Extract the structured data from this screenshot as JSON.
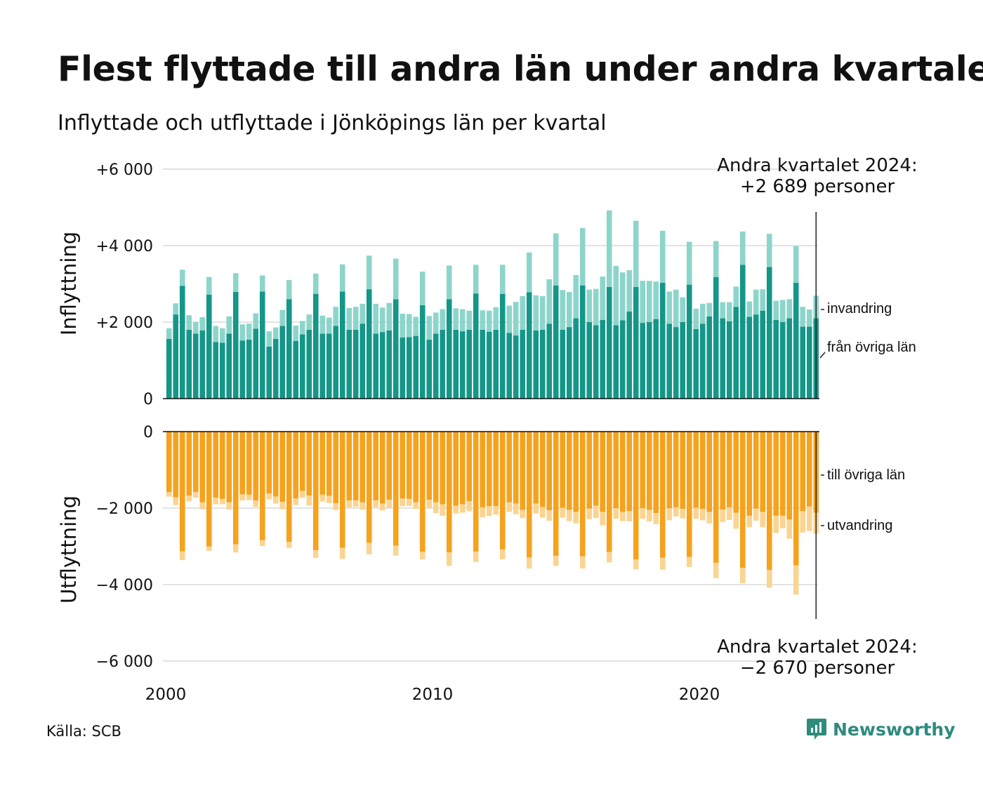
{
  "title": "Flest flyttade till andra län under andra kvartalet",
  "subtitle": "Inflyttade och utflyttade i Jönköpings län per kvartal",
  "source": "Källa: SCB",
  "brand": "Newsworthy",
  "colors": {
    "domestic_in": "#149688",
    "immigration": "#8dd5cb",
    "domestic_out": "#f5a21d",
    "emigration": "#fad492",
    "grid": "#e3e3e3",
    "text": "#111111",
    "brand": "#2e8b7e"
  },
  "chart_data": {
    "type": "bar",
    "stacked": true,
    "start_period": "2000 Q1",
    "end_period": "2024 Q2",
    "x_ticks": [
      "2000",
      "2010",
      "2020"
    ],
    "panels": [
      {
        "id": "inflyttning",
        "ylabel": "Inflyttning",
        "ylim": [
          0,
          6000
        ],
        "yticks": [
          "0",
          "+2 000",
          "+4 000",
          "+6 000"
        ],
        "series": [
          {
            "name": "från övriga län",
            "values": [
              1560,
              2200,
              2950,
              1800,
              1700,
              1780,
              2720,
              1480,
              1460,
              1700,
              2790,
              1520,
              1540,
              1830,
              2800,
              1360,
              1560,
              1900,
              2600,
              1510,
              1680,
              1800,
              2740,
              1700,
              1700,
              1900,
              2800,
              1800,
              1800,
              1960,
              2860,
              1700,
              1740,
              1780,
              2600,
              1600,
              1610,
              1640,
              2440,
              1540,
              1700,
              1800,
              2600,
              1800,
              1760,
              1800,
              2750,
              1800,
              1750,
              1800,
              2740,
              1720,
              1650,
              1800,
              2780,
              1780,
              1800,
              1960,
              2960,
              1800,
              1870,
              2100,
              2960,
              2000,
              1920,
              2060,
              2920,
              1920,
              2050,
              2280,
              2920,
              1980,
              2000,
              2080,
              3030,
              1960,
              1870,
              2000,
              2980,
              1820,
              1960,
              2150,
              3180,
              2100,
              2020,
              2400,
              3500,
              2140,
              2200,
              2300,
              3440,
              2060,
              2000,
              2100,
              3030,
              1880,
              1880,
              2100
            ]
          },
          {
            "name": "invandring",
            "values": [
              280,
              290,
              420,
              380,
              300,
              350,
              460,
              420,
              380,
              450,
              490,
              420,
              420,
              400,
              420,
              400,
              300,
              420,
              500,
              400,
              350,
              400,
              530,
              470,
              420,
              500,
              710,
              570,
              600,
              520,
              880,
              780,
              640,
              720,
              1060,
              620,
              600,
              500,
              880,
              620,
              550,
              540,
              880,
              560,
              580,
              500,
              750,
              510,
              550,
              590,
              760,
              710,
              880,
              880,
              1040,
              920,
              880,
              1160,
              1360,
              1040,
              920,
              1130,
              1500,
              850,
              950,
              1130,
              2000,
              1550,
              1250,
              1080,
              1730,
              1100,
              1080,
              980,
              1360,
              840,
              980,
              650,
              1120,
              530,
              520,
              350,
              940,
              420,
              500,
              530,
              870,
              400,
              650,
              560,
              870,
              500,
              580,
              500,
              960,
              520,
              450,
              590
            ]
          }
        ],
        "annotation": {
          "title": "Andra kvartalet 2024:",
          "value": "+2 689 personer"
        }
      },
      {
        "id": "utflyttning",
        "ylabel": "Utflyttning",
        "ylim": [
          -6000,
          0
        ],
        "yticks": [
          "0",
          "−2 000",
          "−4 000",
          "−6 000"
        ],
        "series": [
          {
            "name": "till övriga län",
            "values": [
              -1580,
              -1720,
              -3130,
              -1670,
              -1580,
              -1850,
              -3000,
              -1730,
              -1760,
              -1850,
              -2950,
              -1640,
              -1650,
              -1800,
              -2840,
              -1620,
              -1700,
              -1840,
              -2880,
              -1750,
              -1550,
              -1670,
              -3100,
              -1650,
              -1680,
              -1870,
              -3040,
              -1800,
              -1800,
              -1850,
              -2910,
              -1800,
              -1880,
              -1780,
              -2980,
              -1750,
              -1760,
              -1850,
              -3140,
              -1780,
              -1850,
              -1900,
              -3160,
              -1940,
              -1900,
              -1820,
              -3140,
              -1980,
              -1950,
              -1950,
              -3080,
              -1850,
              -1880,
              -2050,
              -3290,
              -1880,
              -1970,
              -2060,
              -3250,
              -1990,
              -2050,
              -2100,
              -3260,
              -2010,
              -1940,
              -2100,
              -3150,
              -2000,
              -2100,
              -2080,
              -3340,
              -2000,
              -2050,
              -2130,
              -3300,
              -2000,
              -1980,
              -2020,
              -3280,
              -1990,
              -2020,
              -2100,
              -3430,
              -2040,
              -1980,
              -2120,
              -3560,
              -2200,
              -2010,
              -2100,
              -3620,
              -2200,
              -2200,
              -2300,
              -3500,
              -2080,
              -1960,
              -2120
            ]
          },
          {
            "name": "utvandring",
            "values": [
              -120,
              -200,
              -230,
              -150,
              -150,
              -180,
              -120,
              -170,
              -140,
              -190,
              -210,
              -160,
              -140,
              -170,
              -150,
              -150,
              -180,
              -190,
              -160,
              -170,
              -180,
              -260,
              -200,
              -180,
              -190,
              -180,
              -290,
              -180,
              -170,
              -190,
              -300,
              -180,
              -180,
              -220,
              -260,
              -200,
              -180,
              -170,
              -200,
              -220,
              -280,
              -300,
              -350,
              -200,
              -220,
              -260,
              -270,
              -260,
              -260,
              -220,
              -260,
              -250,
              -280,
              -210,
              -290,
              -260,
              -280,
              -270,
              -260,
              -260,
              -290,
              -300,
              -320,
              -280,
              -320,
              -350,
              -270,
              -280,
              -240,
              -270,
              -260,
              -280,
              -300,
              -290,
              -310,
              -320,
              -240,
              -250,
              -260,
              -290,
              -300,
              -300,
              -400,
              -320,
              -330,
              -420,
              -400,
              -300,
              -320,
              -400,
              -460,
              -450,
              -330,
              -500,
              -760,
              -560,
              -640,
              -550
            ]
          }
        ],
        "annotation": {
          "title": "Andra kvartalet 2024:",
          "value": "−2 670 personer"
        }
      }
    ]
  }
}
